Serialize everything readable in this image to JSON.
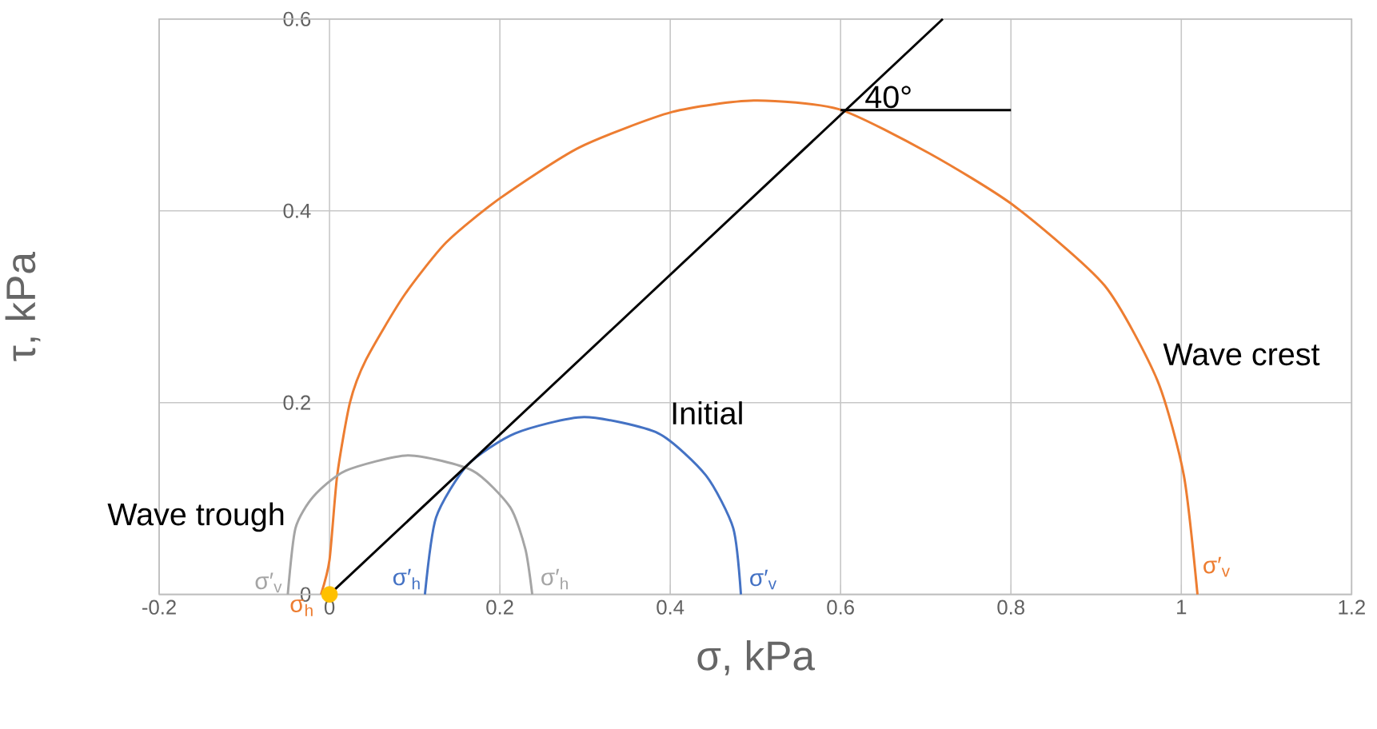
{
  "chart_data": {
    "type": "line",
    "xlabel": "σ, kPa",
    "ylabel": "τ, kPa",
    "xlim": [
      -0.2,
      1.2
    ],
    "ylim": [
      0,
      0.6
    ],
    "xticks": [
      -0.2,
      0,
      0.2,
      0.4,
      0.6,
      0.8,
      1,
      1.2
    ],
    "yticks": [
      0,
      0.2,
      0.4,
      0.6
    ],
    "grid": true,
    "marker": "none",
    "line_style": "solid",
    "series": [
      {
        "name": "Wave crest",
        "color": "#ed7d31",
        "x": [
          -0.01,
          0,
          0.009,
          0.024,
          0.043,
          0.087,
          0.137,
          0.2,
          0.293,
          0.402,
          0.498,
          0.598,
          0.704,
          0.804,
          0.91,
          0.972,
          1.003,
          1.019
        ],
        "values": [
          0,
          0.036,
          0.124,
          0.2,
          0.245,
          0.311,
          0.367,
          0.413,
          0.466,
          0.503,
          0.515,
          0.506,
          0.46,
          0.405,
          0.322,
          0.223,
          0.124,
          0
        ]
      },
      {
        "name": "Initial",
        "color": "#4472c4",
        "x": [
          0.112,
          0.125,
          0.162,
          0.218,
          0.299,
          0.386,
          0.442,
          0.474,
          0.483
        ],
        "values": [
          0,
          0.08,
          0.135,
          0.168,
          0.185,
          0.168,
          0.124,
          0.069,
          0
        ]
      },
      {
        "name": "Wave trough",
        "color": "#a5a5a5",
        "x": [
          -0.049,
          -0.04,
          -0.019,
          0.019,
          0.093,
          0.168,
          0.212,
          0.23,
          0.238
        ],
        "values": [
          0,
          0.069,
          0.102,
          0.129,
          0.145,
          0.129,
          0.091,
          0.047,
          0
        ]
      },
      {
        "color": "#000000",
        "x": [
          0,
          0.72
        ],
        "values": [
          0,
          0.6
        ]
      },
      {
        "color": "#000000",
        "x": [
          0.6,
          0.8
        ],
        "values": [
          0.505,
          0.505
        ]
      },
      {
        "type": "scatter",
        "marker": "circle",
        "color": "#ffc000",
        "x": [
          0
        ],
        "values": [
          0
        ]
      }
    ],
    "annotations": [
      "40°",
      "σ′$_{v}$",
      "σ′$_{h}$",
      "σ′$_{h}$",
      "σ′$_{v}$",
      "σ′$_{v}$",
      "σ$_{h}$"
    ]
  }
}
